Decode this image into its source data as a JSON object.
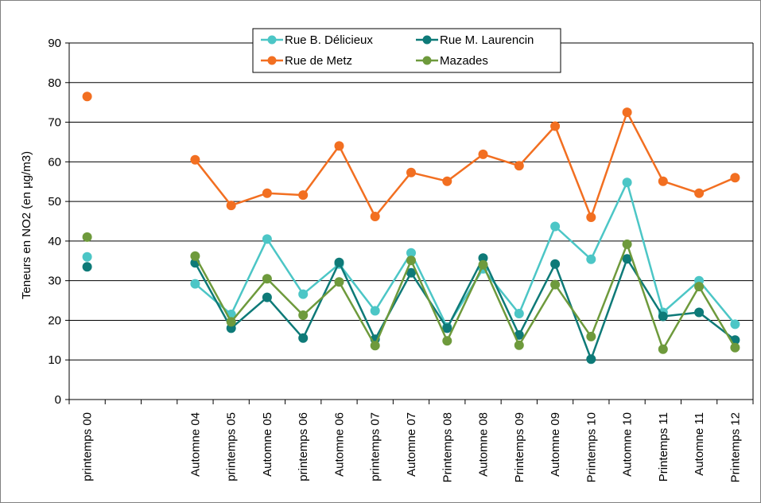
{
  "chart_data": {
    "type": "line",
    "title": "",
    "xlabel": "",
    "ylabel": "Teneurs en NO2 (en µg/m3)",
    "ylim": [
      0,
      90
    ],
    "yticks": [
      0,
      10,
      20,
      30,
      40,
      50,
      60,
      70,
      80,
      90
    ],
    "grid": true,
    "legend_position": "top",
    "categories": [
      "printemps 00",
      "",
      "",
      "Automne 04",
      "printemps 05",
      "Automne 05",
      "printemps 06",
      "Automne 06",
      "printemps 07",
      "Automne 07",
      "Printemps 08",
      "Automne 08",
      "Printemps 09",
      "Automne 09",
      "Printemps 10",
      "Automne 10",
      "Printemps 11",
      "Automne 11",
      "Printemps 12"
    ],
    "series": [
      {
        "name": "Rue B. Délicieux",
        "color": "#4cc6c6",
        "values": [
          36,
          null,
          null,
          29.2,
          21.5,
          40.5,
          26.6,
          34.2,
          22.4,
          37,
          18.3,
          33,
          21.7,
          43.7,
          35.4,
          54.8,
          22,
          30,
          19
        ]
      },
      {
        "name": "Rue M. Laurencin",
        "color": "#0e7a78",
        "values": [
          33.5,
          null,
          null,
          34.5,
          18,
          25.8,
          15.5,
          34.6,
          15.2,
          32,
          18,
          35.7,
          16.3,
          34.2,
          10.2,
          35.5,
          21,
          22,
          15
        ]
      },
      {
        "name": "Rue de Metz",
        "color": "#f26f21",
        "values": [
          76.5,
          null,
          null,
          60.5,
          49,
          52.1,
          51.6,
          64,
          46.2,
          57.3,
          55.1,
          61.9,
          59,
          69,
          46,
          72.5,
          55.1,
          52.1,
          56
        ]
      },
      {
        "name": "Mazades",
        "color": "#6e9a3c",
        "values": [
          41,
          null,
          null,
          36.2,
          19.6,
          30.5,
          21.3,
          29.7,
          13.6,
          35.1,
          14.8,
          34,
          13.7,
          29,
          15.9,
          39.2,
          12.7,
          28.5,
          13.1
        ]
      }
    ]
  }
}
